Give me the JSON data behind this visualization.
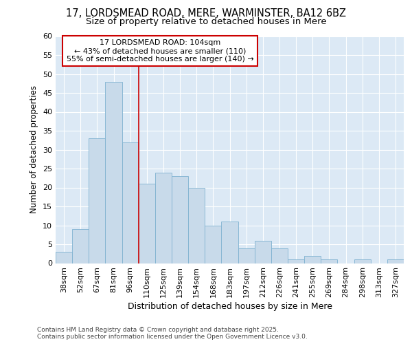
{
  "title1": "17, LORDSMEAD ROAD, MERE, WARMINSTER, BA12 6BZ",
  "title2": "Size of property relative to detached houses in Mere",
  "xlabel": "Distribution of detached houses by size in Mere",
  "ylabel": "Number of detached properties",
  "categories": [
    "38sqm",
    "52sqm",
    "67sqm",
    "81sqm",
    "96sqm",
    "110sqm",
    "125sqm",
    "139sqm",
    "154sqm",
    "168sqm",
    "183sqm",
    "197sqm",
    "212sqm",
    "226sqm",
    "241sqm",
    "255sqm",
    "269sqm",
    "284sqm",
    "298sqm",
    "313sqm",
    "327sqm"
  ],
  "values": [
    3,
    9,
    33,
    48,
    32,
    21,
    24,
    23,
    20,
    10,
    11,
    4,
    6,
    4,
    1,
    2,
    1,
    0,
    1,
    0,
    1
  ],
  "bar_color": "#c8daea",
  "bar_edge_color": "#7fb2d0",
  "redline_x": 4.5,
  "redline_label": "17 LORDSMEAD ROAD: 104sqm",
  "annotation_line1": "← 43% of detached houses are smaller (110)",
  "annotation_line2": "55% of semi-detached houses are larger (140) →",
  "annotation_box_color": "#ffffff",
  "annotation_box_edge": "#cc0000",
  "ylim": [
    0,
    60
  ],
  "yticks": [
    0,
    5,
    10,
    15,
    20,
    25,
    30,
    35,
    40,
    45,
    50,
    55,
    60
  ],
  "figure_background": "#ffffff",
  "plot_background": "#dce9f5",
  "grid_color": "#ffffff",
  "footer": "Contains HM Land Registry data © Crown copyright and database right 2025.\nContains public sector information licensed under the Open Government Licence v3.0.",
  "redline_color": "#cc0000",
  "title1_fontsize": 10.5,
  "title2_fontsize": 9.5,
  "xlabel_fontsize": 9,
  "ylabel_fontsize": 8.5,
  "tick_fontsize": 8,
  "footer_fontsize": 6.5,
  "ann_fontsize": 8
}
